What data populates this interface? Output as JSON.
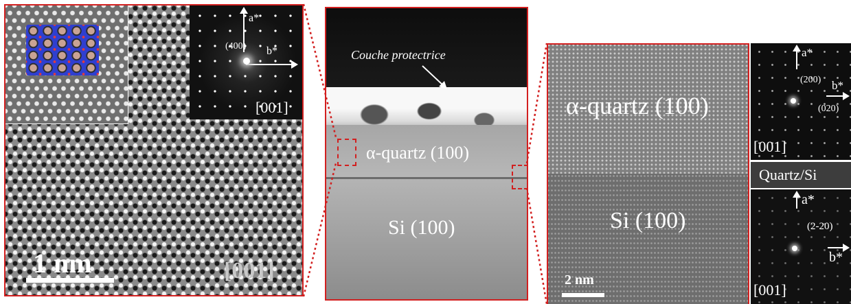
{
  "panel_left": {
    "fft_label_a": "a*",
    "fft_label_b": "b*",
    "fft_spot": "(400)",
    "fft_zone": "[001]",
    "scale_label": "1 nm",
    "zone_axis": "[001]"
  },
  "panel_middle": {
    "coating_label": "Couche protectrice",
    "quartz_label": "α-quartz (100)",
    "si_label": "Si (100)"
  },
  "panel_right": {
    "quartz_label": "α-quartz (100)",
    "si_label": "Si (100)",
    "scale_label": "2 nm"
  },
  "fft_top": {
    "label_a": "a*",
    "label_b": "b*",
    "spot_1": "(200)",
    "spot_2": "(020)",
    "zone": "[001]"
  },
  "interface_label": "Quartz/Si",
  "fft_bottom": {
    "label_a": "a*",
    "label_b": "b*",
    "spot": "(2-20)",
    "zone": "[001]"
  },
  "colors": {
    "frame_red": "#d21f1f",
    "model_blue": "#2f3fd0"
  }
}
